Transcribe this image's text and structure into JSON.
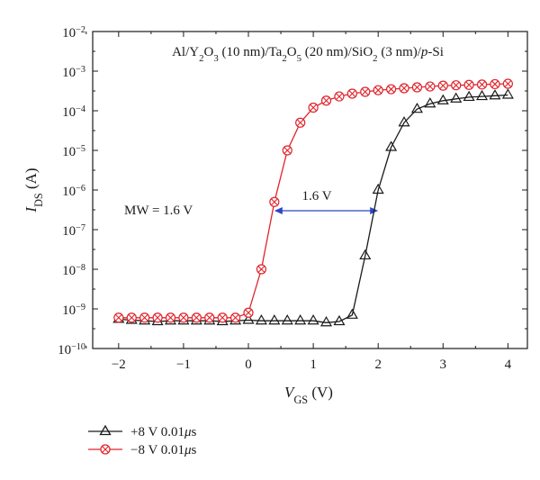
{
  "chart_data": {
    "type": "scatter",
    "title": "Al/Y2O3 (10 nm)/Ta2O5 (20 nm)/SiO2 (3 nm)/p-Si",
    "xlabel": "VGS (V)",
    "ylabel": "IDS (A)",
    "x_scale": "linear",
    "y_scale": "log",
    "xlim": [
      -2.4,
      4.3
    ],
    "ylim": [
      1e-10,
      0.01
    ],
    "xticks": [
      "−2",
      "−1",
      "0",
      "1",
      "2",
      "3",
      "4"
    ],
    "yticks": [
      "10−10",
      "10−9",
      "10−8",
      "10−7",
      "10−6",
      "10−5",
      "10−4",
      "10−3",
      "10−2"
    ],
    "grid": false,
    "legend_position": "below",
    "series": [
      {
        "name": "+8 V 0.01μs",
        "color": "#1a1a1a",
        "marker": "triangle",
        "x": [
          -2.0,
          -1.8,
          -1.6,
          -1.4,
          -1.2,
          -1.0,
          -0.8,
          -0.6,
          -0.4,
          -0.2,
          0.0,
          0.2,
          0.4,
          0.6,
          0.8,
          1.0,
          1.2,
          1.4,
          1.6,
          1.8,
          2.0,
          2.2,
          2.4,
          2.6,
          2.8,
          3.0,
          3.2,
          3.4,
          3.6,
          3.8,
          4.0
        ],
        "y": [
          5.5e-10,
          5.2e-10,
          5e-10,
          4.8e-10,
          5e-10,
          5e-10,
          5e-10,
          5e-10,
          4.8e-10,
          5e-10,
          5.2e-10,
          5e-10,
          5e-10,
          5e-10,
          5e-10,
          5e-10,
          4.5e-10,
          4.8e-10,
          7e-10,
          2.2e-08,
          1e-06,
          1.2e-05,
          5e-05,
          0.00011,
          0.00015,
          0.00018,
          0.0002,
          0.00022,
          0.00023,
          0.00024,
          0.00025
        ]
      },
      {
        "name": "−8 V 0.01μs",
        "color": "#e0242b",
        "marker": "circle-x",
        "x": [
          -2.0,
          -1.8,
          -1.6,
          -1.4,
          -1.2,
          -1.0,
          -0.8,
          -0.6,
          -0.4,
          -0.2,
          0.0,
          0.2,
          0.4,
          0.6,
          0.8,
          1.0,
          1.2,
          1.4,
          1.6,
          1.8,
          2.0,
          2.2,
          2.4,
          2.6,
          2.8,
          3.0,
          3.2,
          3.4,
          3.6,
          3.8,
          4.0
        ],
        "y": [
          6e-10,
          6e-10,
          6e-10,
          6e-10,
          6e-10,
          6e-10,
          6e-10,
          6e-10,
          6e-10,
          6e-10,
          8e-10,
          1e-08,
          5e-07,
          1e-05,
          5e-05,
          0.00012,
          0.00018,
          0.00023,
          0.00027,
          0.0003,
          0.00033,
          0.00035,
          0.00037,
          0.00039,
          0.00041,
          0.00043,
          0.00044,
          0.00045,
          0.00046,
          0.00047,
          0.00048
        ]
      }
    ],
    "annotations": {
      "memory_window_label": "MW = 1.6 V",
      "shift_label": "1.6 V",
      "shift_arrow_x": [
        0.4,
        2.0
      ],
      "shift_arrow_y": 3e-07,
      "arrow_color": "#2b46c8"
    }
  }
}
